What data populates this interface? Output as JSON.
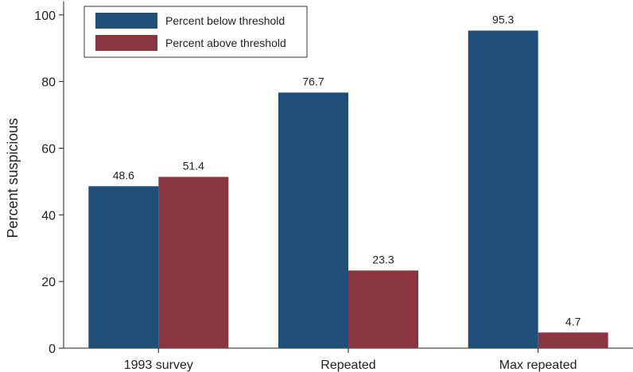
{
  "chart_data": {
    "type": "bar",
    "categories": [
      "1993 survey",
      "Repeated",
      "Max repeated"
    ],
    "series": [
      {
        "name": "Percent below threshold",
        "values": [
          48.6,
          76.7,
          95.3
        ],
        "color": "#1f4e79"
      },
      {
        "name": "Percent above threshold",
        "values": [
          51.4,
          23.3,
          4.7
        ],
        "color": "#8b3541"
      }
    ],
    "data_labels": [
      [
        "48.6",
        "76.7",
        "95.3"
      ],
      [
        "51.4",
        "23.3",
        "4.7"
      ]
    ],
    "ylabel": "Percent suspicious",
    "xlabel": "",
    "ylim": [
      0,
      100
    ],
    "yticks": [
      0,
      20,
      40,
      60,
      80,
      100
    ],
    "grid": false,
    "legend_position": "top-left"
  }
}
